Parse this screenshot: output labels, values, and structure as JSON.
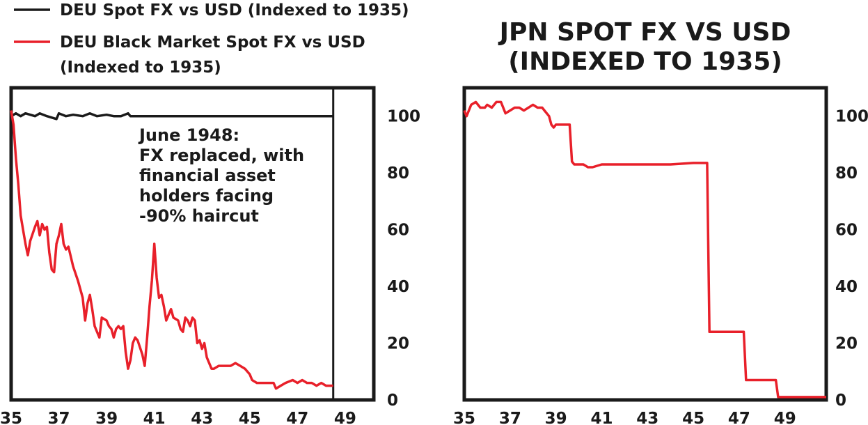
{
  "chart_data": [
    {
      "type": "line",
      "title": "",
      "xlabel": "",
      "ylabel": "",
      "x_tick_labels": [
        "35",
        "37",
        "39",
        "41",
        "43",
        "45",
        "47",
        "49"
      ],
      "y_tick_labels": [
        "0",
        "20",
        "40",
        "60",
        "80",
        "100"
      ],
      "xlim": [
        1935,
        1950.2
      ],
      "ylim": [
        0,
        110
      ],
      "grid": false,
      "legend_position": "top-left",
      "vertical_marker_x": 1948.5,
      "annotation": [
        "June 1948:",
        "FX replaced, with",
        "financial asset",
        "holders facing",
        "-90% haircut"
      ],
      "series": [
        {
          "name": "DEU Spot FX vs USD (Indexed to 1935)",
          "color": "#1a1a1a",
          "points": [
            [
              1935.0,
              100
            ],
            [
              1935.2,
              101
            ],
            [
              1935.4,
              100
            ],
            [
              1935.6,
              101
            ],
            [
              1935.8,
              100.5
            ],
            [
              1936.0,
              100
            ],
            [
              1936.2,
              101
            ],
            [
              1936.5,
              100
            ],
            [
              1936.9,
              99
            ],
            [
              1937.0,
              101
            ],
            [
              1937.3,
              100
            ],
            [
              1937.6,
              100.5
            ],
            [
              1938.0,
              100
            ],
            [
              1938.3,
              101
            ],
            [
              1938.6,
              100
            ],
            [
              1939.0,
              100.5
            ],
            [
              1939.3,
              100
            ],
            [
              1939.6,
              100
            ],
            [
              1939.9,
              101
            ],
            [
              1940.0,
              100
            ],
            [
              1941.0,
              100
            ],
            [
              1943.0,
              100
            ],
            [
              1945.0,
              100
            ],
            [
              1947.0,
              100
            ],
            [
              1948.5,
              100
            ]
          ]
        },
        {
          "name": "DEU Black Market Spot FX vs USD (Indexed to 1935)",
          "color": "#e8202a",
          "points": [
            [
              1935.0,
              102
            ],
            [
              1935.1,
              97
            ],
            [
              1935.2,
              85
            ],
            [
              1935.3,
              76
            ],
            [
              1935.4,
              65
            ],
            [
              1935.5,
              60
            ],
            [
              1935.6,
              55
            ],
            [
              1935.7,
              51
            ],
            [
              1935.8,
              56
            ],
            [
              1936.0,
              61
            ],
            [
              1936.1,
              63
            ],
            [
              1936.2,
              58
            ],
            [
              1936.3,
              62
            ],
            [
              1936.4,
              60
            ],
            [
              1936.5,
              61
            ],
            [
              1936.6,
              52
            ],
            [
              1936.7,
              46
            ],
            [
              1936.8,
              45
            ],
            [
              1936.9,
              55
            ],
            [
              1937.0,
              58
            ],
            [
              1937.1,
              62
            ],
            [
              1937.2,
              55
            ],
            [
              1937.3,
              53
            ],
            [
              1937.4,
              54
            ],
            [
              1937.6,
              47
            ],
            [
              1937.8,
              42
            ],
            [
              1938.0,
              36
            ],
            [
              1938.1,
              28
            ],
            [
              1938.2,
              34
            ],
            [
              1938.3,
              37
            ],
            [
              1938.4,
              32
            ],
            [
              1938.5,
              26
            ],
            [
              1938.6,
              24
            ],
            [
              1938.7,
              22
            ],
            [
              1938.8,
              29
            ],
            [
              1939.0,
              28
            ],
            [
              1939.1,
              26
            ],
            [
              1939.2,
              25
            ],
            [
              1939.3,
              22
            ],
            [
              1939.4,
              25
            ],
            [
              1939.5,
              26
            ],
            [
              1939.6,
              25
            ],
            [
              1939.7,
              26
            ],
            [
              1939.8,
              17
            ],
            [
              1939.9,
              11
            ],
            [
              1940.0,
              14
            ],
            [
              1940.1,
              20
            ],
            [
              1940.2,
              22
            ],
            [
              1940.3,
              21
            ],
            [
              1940.5,
              16
            ],
            [
              1940.6,
              12
            ],
            [
              1940.7,
              22
            ],
            [
              1940.8,
              33
            ],
            [
              1940.9,
              42
            ],
            [
              1941.0,
              55
            ],
            [
              1941.1,
              43
            ],
            [
              1941.2,
              36
            ],
            [
              1941.3,
              37
            ],
            [
              1941.4,
              33
            ],
            [
              1941.5,
              28
            ],
            [
              1941.6,
              30
            ],
            [
              1941.7,
              32
            ],
            [
              1941.8,
              29
            ],
            [
              1942.0,
              28
            ],
            [
              1942.1,
              25
            ],
            [
              1942.2,
              24
            ],
            [
              1942.3,
              29
            ],
            [
              1942.4,
              28
            ],
            [
              1942.5,
              26
            ],
            [
              1942.6,
              29
            ],
            [
              1942.7,
              28
            ],
            [
              1942.8,
              20
            ],
            [
              1942.9,
              21
            ],
            [
              1943.0,
              18
            ],
            [
              1943.1,
              20
            ],
            [
              1943.2,
              15
            ],
            [
              1943.3,
              13
            ],
            [
              1943.4,
              11
            ],
            [
              1943.5,
              11
            ],
            [
              1943.7,
              12
            ],
            [
              1944.0,
              12
            ],
            [
              1944.2,
              12
            ],
            [
              1944.4,
              13
            ],
            [
              1944.6,
              12
            ],
            [
              1944.8,
              11
            ],
            [
              1945.0,
              9
            ],
            [
              1945.1,
              7
            ],
            [
              1945.3,
              6
            ],
            [
              1946.0,
              6
            ],
            [
              1946.1,
              4
            ],
            [
              1946.3,
              5
            ],
            [
              1946.5,
              6
            ],
            [
              1946.8,
              7
            ],
            [
              1947.0,
              6
            ],
            [
              1947.2,
              7
            ],
            [
              1947.4,
              6
            ],
            [
              1947.6,
              6
            ],
            [
              1947.8,
              5
            ],
            [
              1948.0,
              6
            ],
            [
              1948.2,
              5
            ],
            [
              1948.5,
              5
            ]
          ]
        }
      ]
    },
    {
      "type": "line",
      "title": "JPN SPOT FX VS USD (INDEXED TO 1935)",
      "title_lines": [
        "JPN SPOT FX VS USD",
        "(INDEXED TO 1935)"
      ],
      "xlabel": "",
      "ylabel": "",
      "x_tick_labels": [
        "35",
        "37",
        "39",
        "41",
        "43",
        "45",
        "47",
        "49"
      ],
      "y_tick_labels": [
        "0",
        "20",
        "40",
        "60",
        "80",
        "100"
      ],
      "xlim": [
        1935,
        1950.8
      ],
      "ylim": [
        0,
        110
      ],
      "grid": false,
      "series": [
        {
          "name": "",
          "color": "#e8202a",
          "points": [
            [
              1935.0,
              102
            ],
            [
              1935.1,
              100
            ],
            [
              1935.3,
              104
            ],
            [
              1935.5,
              105
            ],
            [
              1935.7,
              103
            ],
            [
              1935.9,
              103
            ],
            [
              1936.0,
              104
            ],
            [
              1936.2,
              103
            ],
            [
              1936.4,
              105
            ],
            [
              1936.6,
              105
            ],
            [
              1936.8,
              101
            ],
            [
              1937.0,
              102
            ],
            [
              1937.2,
              103
            ],
            [
              1937.4,
              103
            ],
            [
              1937.6,
              102
            ],
            [
              1937.8,
              103
            ],
            [
              1938.0,
              104
            ],
            [
              1938.2,
              103
            ],
            [
              1938.4,
              103
            ],
            [
              1938.5,
              102
            ],
            [
              1938.6,
              101
            ],
            [
              1938.7,
              100
            ],
            [
              1938.8,
              97
            ],
            [
              1938.9,
              96
            ],
            [
              1939.0,
              97
            ],
            [
              1939.3,
              97
            ],
            [
              1939.6,
              97
            ],
            [
              1939.7,
              84
            ],
            [
              1939.8,
              83
            ],
            [
              1940.0,
              83
            ],
            [
              1940.2,
              83
            ],
            [
              1940.4,
              82
            ],
            [
              1940.6,
              82
            ],
            [
              1941.0,
              83
            ],
            [
              1942.0,
              83
            ],
            [
              1943.0,
              83
            ],
            [
              1943.5,
              83
            ],
            [
              1944.0,
              83
            ],
            [
              1945.0,
              83.5
            ],
            [
              1945.6,
              83.5
            ],
            [
              1945.7,
              24
            ],
            [
              1946.0,
              24
            ],
            [
              1946.5,
              24
            ],
            [
              1947.2,
              24
            ],
            [
              1947.3,
              7
            ],
            [
              1947.6,
              7
            ],
            [
              1948.0,
              7
            ],
            [
              1948.6,
              7
            ],
            [
              1948.7,
              1
            ],
            [
              1949.0,
              1
            ],
            [
              1949.5,
              1
            ],
            [
              1950.0,
              1
            ],
            [
              1950.8,
              1
            ]
          ]
        }
      ]
    }
  ]
}
